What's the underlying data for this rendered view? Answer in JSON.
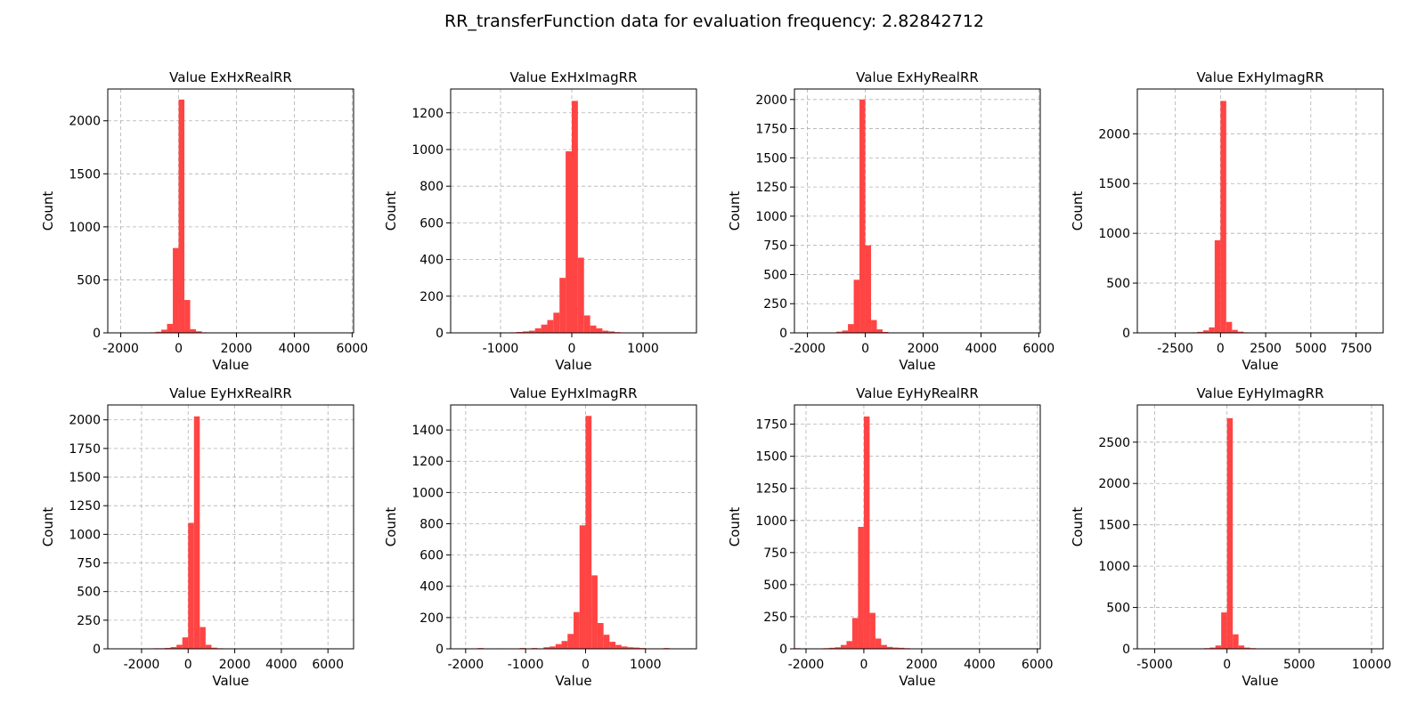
{
  "figure": {
    "suptitle": "RR_transferFunction data for evaluation frequency: 2.82842712"
  },
  "chart_data": [
    {
      "type": "bar",
      "title": "Value ExHxRealRR",
      "xlabel": "Value",
      "ylabel": "Count",
      "xlim": [
        -2450,
        6050
      ],
      "ylim": [
        0,
        2300
      ],
      "xticks": [
        -2000,
        0,
        2000,
        4000,
        6000
      ],
      "yticks": [
        0,
        500,
        1000,
        1500,
        2000
      ],
      "bin_width": 200,
      "bins": [
        {
          "x": -1000,
          "v": 5
        },
        {
          "x": -800,
          "v": 10
        },
        {
          "x": -600,
          "v": 30
        },
        {
          "x": -400,
          "v": 85
        },
        {
          "x": -200,
          "v": 800
        },
        {
          "x": 0,
          "v": 2200
        },
        {
          "x": 200,
          "v": 310
        },
        {
          "x": 400,
          "v": 35
        },
        {
          "x": 600,
          "v": 15
        },
        {
          "x": 800,
          "v": 5
        },
        {
          "x": 1000,
          "v": 2
        }
      ],
      "color": "#ff4444",
      "grid": true
    },
    {
      "type": "bar",
      "title": "Value ExHxImagRR",
      "xlabel": "Value",
      "ylabel": "Count",
      "xlim": [
        -1700,
        1750
      ],
      "ylim": [
        0,
        1330
      ],
      "xticks": [
        -1000,
        0,
        1000
      ],
      "yticks": [
        0,
        200,
        400,
        600,
        800,
        1000,
        1200
      ],
      "bin_width": 86,
      "bins": [
        {
          "x": -860,
          "v": 3
        },
        {
          "x": -774,
          "v": 5
        },
        {
          "x": -688,
          "v": 8
        },
        {
          "x": -602,
          "v": 12
        },
        {
          "x": -516,
          "v": 25
        },
        {
          "x": -430,
          "v": 45
        },
        {
          "x": -344,
          "v": 70
        },
        {
          "x": -258,
          "v": 110
        },
        {
          "x": -172,
          "v": 300
        },
        {
          "x": -86,
          "v": 990
        },
        {
          "x": 0,
          "v": 1265
        },
        {
          "x": 86,
          "v": 410
        },
        {
          "x": 172,
          "v": 95
        },
        {
          "x": 258,
          "v": 40
        },
        {
          "x": 344,
          "v": 25
        },
        {
          "x": 430,
          "v": 12
        },
        {
          "x": 516,
          "v": 8
        },
        {
          "x": 602,
          "v": 4
        },
        {
          "x": 688,
          "v": 2
        }
      ],
      "color": "#ff4444",
      "grid": true
    },
    {
      "type": "bar",
      "title": "Value ExHyRealRR",
      "xlabel": "Value",
      "ylabel": "Count",
      "xlim": [
        -2450,
        6050
      ],
      "ylim": [
        0,
        2090
      ],
      "xticks": [
        -2000,
        0,
        2000,
        4000,
        6000
      ],
      "yticks": [
        0,
        250,
        500,
        750,
        1000,
        1250,
        1500,
        1750,
        2000
      ],
      "bin_width": 200,
      "bins": [
        {
          "x": -1200,
          "v": 3
        },
        {
          "x": -1000,
          "v": 10
        },
        {
          "x": -800,
          "v": 20
        },
        {
          "x": -600,
          "v": 75
        },
        {
          "x": -400,
          "v": 455
        },
        {
          "x": -200,
          "v": 2000
        },
        {
          "x": 0,
          "v": 750
        },
        {
          "x": 200,
          "v": 110
        },
        {
          "x": 400,
          "v": 30
        },
        {
          "x": 600,
          "v": 8
        },
        {
          "x": 800,
          "v": 3
        }
      ],
      "color": "#ff4444",
      "grid": true
    },
    {
      "type": "bar",
      "title": "Value ExHyImagRR",
      "xlabel": "Value",
      "ylabel": "Count",
      "xlim": [
        -4600,
        9000
      ],
      "ylim": [
        0,
        2450
      ],
      "xticks": [
        -2500,
        0,
        2500,
        5000,
        7500
      ],
      "yticks": [
        0,
        500,
        1000,
        1500,
        2000
      ],
      "bin_width": 320,
      "bins": [
        {
          "x": -1600,
          "v": 5
        },
        {
          "x": -1280,
          "v": 10
        },
        {
          "x": -960,
          "v": 25
        },
        {
          "x": -640,
          "v": 55
        },
        {
          "x": -320,
          "v": 930
        },
        {
          "x": 0,
          "v": 2330
        },
        {
          "x": 320,
          "v": 110
        },
        {
          "x": 640,
          "v": 30
        },
        {
          "x": 960,
          "v": 12
        },
        {
          "x": 1280,
          "v": 5
        }
      ],
      "color": "#ff4444",
      "grid": true
    },
    {
      "type": "bar",
      "title": "Value EyHxRealRR",
      "xlabel": "Value",
      "ylabel": "Count",
      "xlim": [
        -3450,
        7100
      ],
      "ylim": [
        0,
        2130
      ],
      "xticks": [
        -2000,
        0,
        2000,
        4000,
        6000
      ],
      "yticks": [
        0,
        250,
        500,
        750,
        1000,
        1250,
        1500,
        1750,
        2000
      ],
      "bin_width": 250,
      "bins": [
        {
          "x": -2500,
          "v": 2
        },
        {
          "x": -2000,
          "v": 3
        },
        {
          "x": -1500,
          "v": 5
        },
        {
          "x": -1250,
          "v": 5
        },
        {
          "x": -1000,
          "v": 8
        },
        {
          "x": -750,
          "v": 15
        },
        {
          "x": -500,
          "v": 35
        },
        {
          "x": -250,
          "v": 100
        },
        {
          "x": 0,
          "v": 1100
        },
        {
          "x": 250,
          "v": 2030
        },
        {
          "x": 500,
          "v": 190
        },
        {
          "x": 750,
          "v": 35
        },
        {
          "x": 1000,
          "v": 10
        },
        {
          "x": 1250,
          "v": 5
        },
        {
          "x": 1750,
          "v": 3
        },
        {
          "x": 2250,
          "v": 2
        }
      ],
      "color": "#ff4444",
      "grid": true
    },
    {
      "type": "bar",
      "title": "Value EyHxImagRR",
      "xlabel": "Value",
      "ylabel": "Count",
      "xlim": [
        -2250,
        1850
      ],
      "ylim": [
        0,
        1560
      ],
      "xticks": [
        -2000,
        -1000,
        0,
        1000
      ],
      "yticks": [
        0,
        200,
        400,
        600,
        800,
        1000,
        1200,
        1400
      ],
      "bin_width": 100,
      "bins": [
        {
          "x": -1800,
          "v": 5
        },
        {
          "x": -1500,
          "v": 3
        },
        {
          "x": -1100,
          "v": 5
        },
        {
          "x": -900,
          "v": 5
        },
        {
          "x": -700,
          "v": 10
        },
        {
          "x": -600,
          "v": 15
        },
        {
          "x": -500,
          "v": 30
        },
        {
          "x": -400,
          "v": 50
        },
        {
          "x": -300,
          "v": 95
        },
        {
          "x": -200,
          "v": 235
        },
        {
          "x": -100,
          "v": 790
        },
        {
          "x": 0,
          "v": 1490
        },
        {
          "x": 100,
          "v": 470
        },
        {
          "x": 200,
          "v": 165
        },
        {
          "x": 300,
          "v": 90
        },
        {
          "x": 400,
          "v": 45
        },
        {
          "x": 500,
          "v": 25
        },
        {
          "x": 600,
          "v": 15
        },
        {
          "x": 700,
          "v": 10
        },
        {
          "x": 800,
          "v": 8
        },
        {
          "x": 900,
          "v": 5
        },
        {
          "x": 1100,
          "v": 3
        },
        {
          "x": 1300,
          "v": 5
        },
        {
          "x": 1700,
          "v": 3
        }
      ],
      "color": "#ff4444",
      "grid": true
    },
    {
      "type": "bar",
      "title": "Value EyHyRealRR",
      "xlabel": "Value",
      "ylabel": "Count",
      "xlim": [
        -2400,
        6100
      ],
      "ylim": [
        0,
        1900
      ],
      "xticks": [
        -2000,
        0,
        2000,
        4000,
        6000
      ],
      "yticks": [
        0,
        250,
        500,
        750,
        1000,
        1250,
        1500,
        1750
      ],
      "bin_width": 200,
      "bins": [
        {
          "x": -2400,
          "v": 5
        },
        {
          "x": -1800,
          "v": 3
        },
        {
          "x": -1400,
          "v": 5
        },
        {
          "x": -1200,
          "v": 8
        },
        {
          "x": -1000,
          "v": 12
        },
        {
          "x": -800,
          "v": 30
        },
        {
          "x": -600,
          "v": 60
        },
        {
          "x": -400,
          "v": 240
        },
        {
          "x": -200,
          "v": 950
        },
        {
          "x": 0,
          "v": 1810
        },
        {
          "x": 200,
          "v": 280
        },
        {
          "x": 400,
          "v": 80
        },
        {
          "x": 600,
          "v": 30
        },
        {
          "x": 800,
          "v": 15
        },
        {
          "x": 1000,
          "v": 10
        },
        {
          "x": 1200,
          "v": 8
        },
        {
          "x": 1400,
          "v": 5
        },
        {
          "x": 1600,
          "v": 3
        },
        {
          "x": 3400,
          "v": 3
        }
      ],
      "color": "#ff4444",
      "grid": true
    },
    {
      "type": "bar",
      "title": "Value EyHyImagRR",
      "xlabel": "Value",
      "ylabel": "Count",
      "xlim": [
        -6200,
        10800
      ],
      "ylim": [
        0,
        2950
      ],
      "xticks": [
        -5000,
        0,
        5000,
        10000
      ],
      "yticks": [
        0,
        500,
        1000,
        1500,
        2000,
        2500
      ],
      "bin_width": 400,
      "bins": [
        {
          "x": -3200,
          "v": 3
        },
        {
          "x": -2400,
          "v": 5
        },
        {
          "x": -1600,
          "v": 8
        },
        {
          "x": -1200,
          "v": 15
        },
        {
          "x": -800,
          "v": 40
        },
        {
          "x": -400,
          "v": 440
        },
        {
          "x": 0,
          "v": 2790
        },
        {
          "x": 400,
          "v": 175
        },
        {
          "x": 800,
          "v": 40
        },
        {
          "x": 1200,
          "v": 15
        },
        {
          "x": 1600,
          "v": 8
        },
        {
          "x": 2400,
          "v": 3
        }
      ],
      "color": "#ff4444",
      "grid": true
    }
  ]
}
